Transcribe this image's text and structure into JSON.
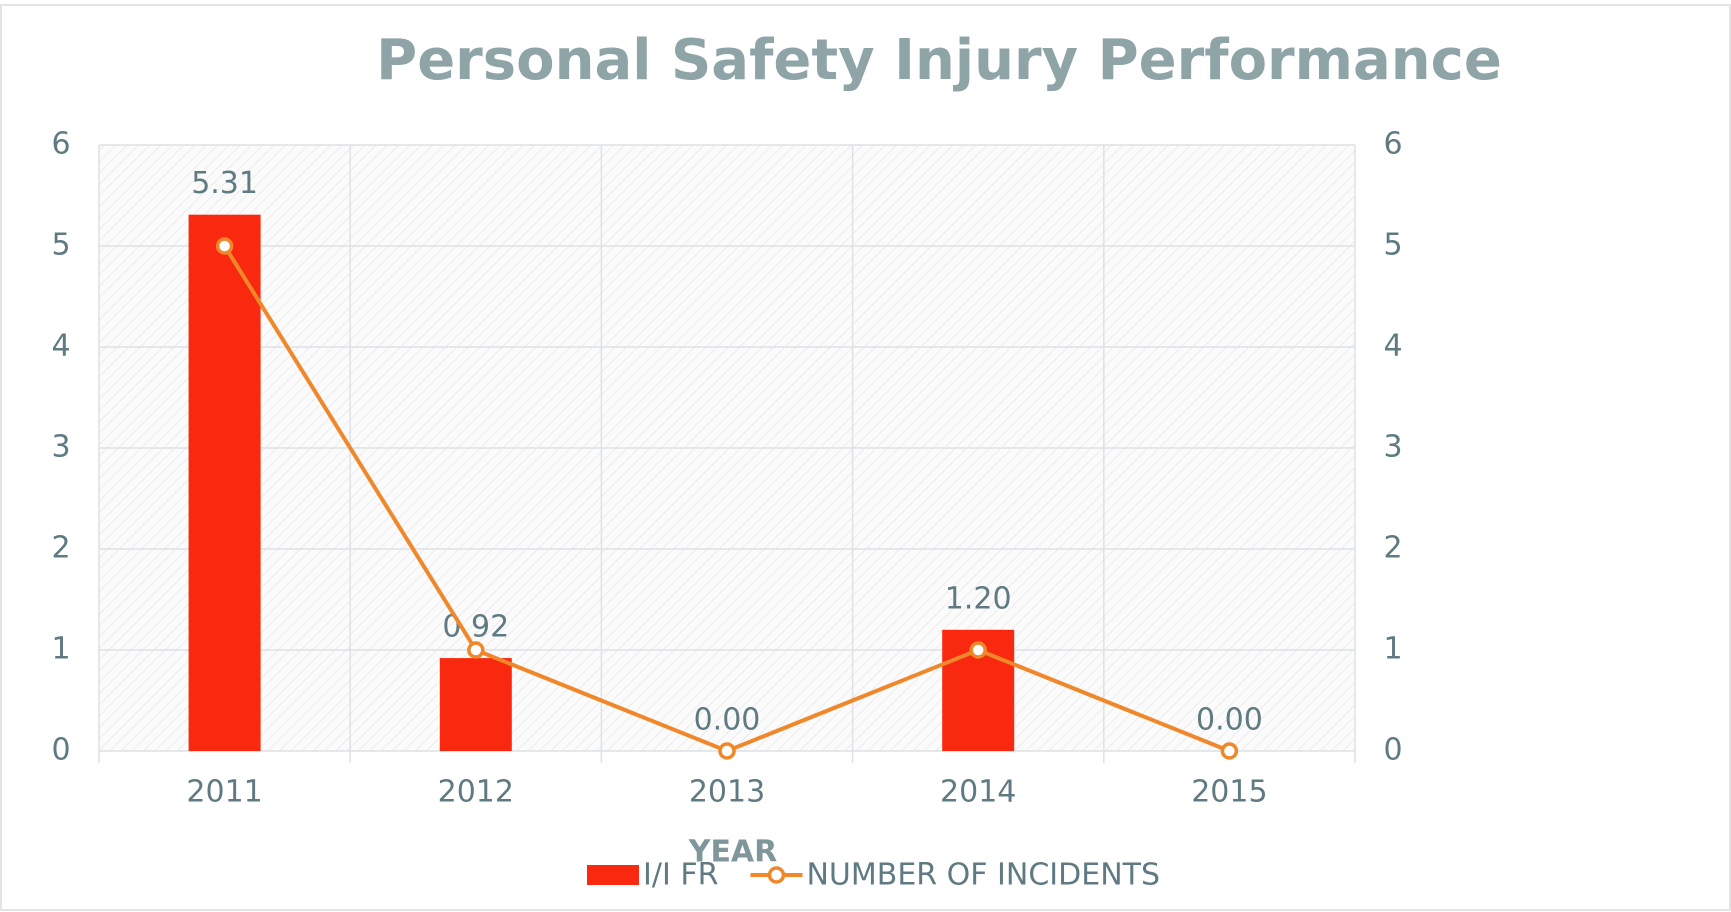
{
  "chart_data": {
    "type": "combo",
    "title": "Personal Safety Injury Performance",
    "x_label": "YEAR",
    "categories": [
      "2011",
      "2012",
      "2013",
      "2014",
      "2015"
    ],
    "series": [
      {
        "name": "I/I FR",
        "type": "bar",
        "color": "#f8290f",
        "values": [
          5.31,
          0.92,
          0,
          1.2,
          0
        ],
        "value_labels": [
          "5.31",
          "0.92",
          "0.00",
          "1.20",
          "0.00"
        ]
      },
      {
        "name": "NUMBER OF INCIDENTS",
        "type": "line",
        "color": "#f0872a",
        "axis": "y2",
        "values": [
          5,
          1,
          0,
          1,
          0
        ]
      }
    ],
    "ylim": [
      0,
      6
    ],
    "yticks": [
      0,
      1,
      2,
      3,
      4,
      5,
      6
    ],
    "y2lim": [
      0,
      6
    ],
    "y2ticks": [
      0,
      1,
      2,
      3,
      4,
      5,
      6
    ],
    "grid": true,
    "legend": "bottom"
  }
}
